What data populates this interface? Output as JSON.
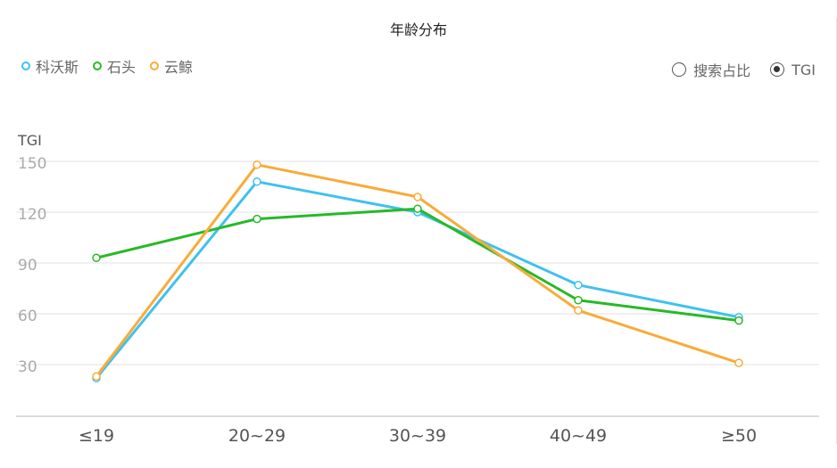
{
  "title": "年龄分布",
  "legend": [
    {
      "label": "科沃斯",
      "color": "#3fc1ef"
    },
    {
      "label": "石头",
      "color": "#27b927"
    },
    {
      "label": "云鲸",
      "color": "#f8ab3a"
    }
  ],
  "toggle": {
    "options": [
      {
        "label": "搜索占比",
        "selected": false
      },
      {
        "label": "TGI",
        "selected": true
      }
    ]
  },
  "chart_data": {
    "type": "line",
    "title": "年龄分布",
    "xlabel": "",
    "ylabel": "TGI",
    "categories": [
      "≤19",
      "20~29",
      "30~39",
      "40~49",
      "≥50"
    ],
    "yticks": [
      30,
      60,
      90,
      120,
      150
    ],
    "ylim": [
      0,
      150
    ],
    "grid": true,
    "legend_position": "top-left",
    "series": [
      {
        "name": "科沃斯",
        "color": "#3fc1ef",
        "values": [
          22,
          138,
          120,
          77,
          58
        ]
      },
      {
        "name": "石头",
        "color": "#27b927",
        "values": [
          93,
          116,
          122,
          68,
          56
        ]
      },
      {
        "name": "云鲸",
        "color": "#f8ab3a",
        "values": [
          23,
          148,
          129,
          62,
          31
        ]
      }
    ]
  }
}
